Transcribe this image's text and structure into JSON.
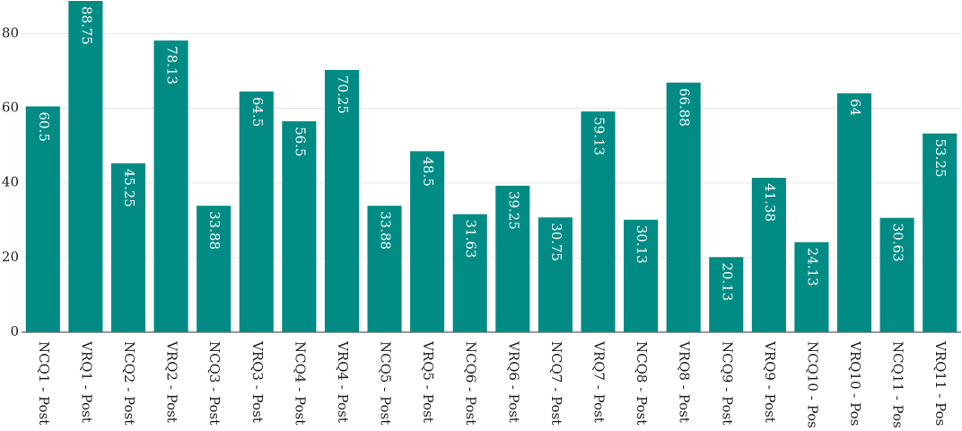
{
  "chart_data": {
    "type": "bar",
    "categories": [
      "NCQ1 - Post",
      "VRQ1 - Post",
      "NCQ2 - Post",
      "VRQ2 - Post",
      "NCQ3 - Post",
      "VRQ3 - Post",
      "NCQ4 - Post",
      "VRQ4 - Post",
      "NCQ5 - Post",
      "VRQ5 - Post",
      "NCQ6 - Post",
      "VRQ6 - Post",
      "NCQ7 - Post",
      "VRQ7 - Post",
      "NCQ8 - Post",
      "VRQ8 - Post",
      "NCQ9 - Post",
      "VRQ9 - Post",
      "NCQ10 - Pos",
      "VRQ10 - Pos",
      "NCQ11 - Pos",
      "VRQ11 - Pos"
    ],
    "values": [
      60.5,
      88.75,
      45.25,
      78.13,
      33.88,
      64.5,
      56.5,
      70.25,
      33.88,
      48.5,
      31.63,
      39.25,
      30.75,
      59.13,
      30.13,
      66.88,
      20.13,
      41.38,
      24.13,
      64,
      30.63,
      53.25
    ],
    "color": "#008b84",
    "ylim": [
      0,
      89
    ],
    "yticks": [
      0,
      20,
      40,
      60,
      80
    ],
    "grid": true
  }
}
